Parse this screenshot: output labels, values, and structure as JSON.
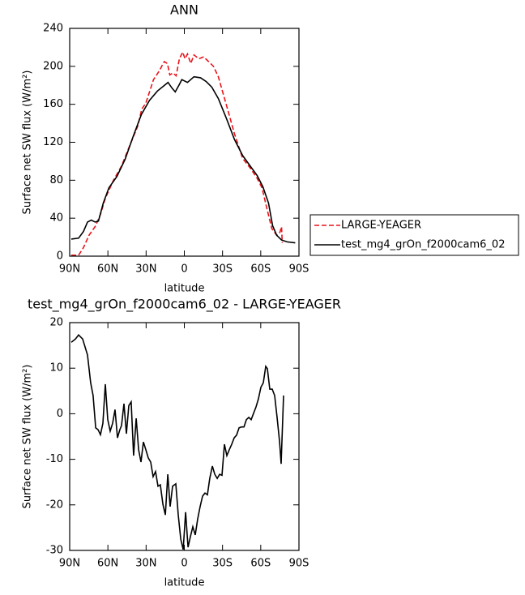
{
  "chart_data": [
    {
      "type": "line",
      "title": "ANN",
      "xlabel": "latitude",
      "ylabel": "Surface net SW flux (W/m²)",
      "xlim": [
        90,
        -90
      ],
      "ylim": [
        0,
        240
      ],
      "xticks": [
        {
          "value": 90,
          "label": "90N"
        },
        {
          "value": 60,
          "label": "60N"
        },
        {
          "value": 30,
          "label": "30N"
        },
        0,
        {
          "value": -30,
          "label": "30S"
        },
        {
          "value": -60,
          "label": "60S"
        },
        {
          "value": -90,
          "label": "90S"
        }
      ],
      "yticks": [
        0,
        40,
        80,
        120,
        160,
        200,
        240
      ],
      "legend": "right",
      "series": [
        {
          "name": "LARGE-YEAGER",
          "color": "#e8141a",
          "linestyle": "dashed",
          "x": [
            88.7,
            83,
            79.2,
            74.8,
            69.6,
            65.8,
            62,
            55.6,
            49.3,
            43,
            36.6,
            33.4,
            30.3,
            24.2,
            19.7,
            15.8,
            13.3,
            11.4,
            8.9,
            6.4,
            3.9,
            1.3,
            -0.6,
            -2.5,
            -5.1,
            -7.6,
            -11.4,
            -15.2,
            -19.1,
            -22.9,
            -26.7,
            -33.1,
            -39.4,
            -45.8,
            -52.2,
            -57.2,
            -61,
            -64.9,
            -68.7,
            -72.5,
            -75,
            -76.3,
            -76.9
          ],
          "values": [
            1,
            1,
            9,
            22,
            32,
            44,
            61,
            80,
            95,
            116,
            137,
            155,
            161,
            186,
            195,
            205,
            203,
            191,
            193,
            190,
            208,
            215,
            208,
            213,
            203,
            212,
            208,
            210,
            205,
            200,
            189,
            159,
            129,
            103,
            92,
            82,
            72,
            50,
            29,
            22,
            25,
            31,
            14
          ]
        },
        {
          "name": "test_mg4_grOn_f2000cam6_02",
          "color": "#000000",
          "linestyle": "solid",
          "x": [
            88.7,
            83,
            79.2,
            76,
            73,
            70,
            67.4,
            63.6,
            59.2,
            52.9,
            46.5,
            40.2,
            33.8,
            27.4,
            21.1,
            14.7,
            12.8,
            9.6,
            7.1,
            3.9,
            2,
            -2.5,
            -7.6,
            -12.7,
            -17.2,
            -21.6,
            -26.7,
            -33.1,
            -39.4,
            -45.8,
            -52.2,
            -57.2,
            -61.7,
            -66.1,
            -69.3,
            -72.5,
            -76.3,
            -80.8,
            -87.1
          ],
          "values": [
            18,
            19,
            26,
            36,
            38,
            36,
            37,
            56,
            72,
            84,
            102,
            126,
            149,
            164,
            174,
            181,
            183,
            177,
            173,
            181,
            186,
            183,
            189,
            188,
            184,
            178,
            166,
            145,
            123,
            106,
            94,
            85,
            73,
            56,
            32,
            22,
            17,
            15,
            14
          ]
        }
      ]
    },
    {
      "type": "line",
      "title": "test_mg4_grOn_f2000cam6_02 - LARGE-YEAGER",
      "xlabel": "latitude",
      "ylabel": "Surface net SW flux (W/m²)",
      "xlim": [
        90,
        -90
      ],
      "ylim": [
        -30,
        20
      ],
      "xticks": [
        {
          "value": 90,
          "label": "90N"
        },
        {
          "value": 60,
          "label": "60N"
        },
        {
          "value": 30,
          "label": "30N"
        },
        0,
        {
          "value": -30,
          "label": "30S"
        },
        {
          "value": -60,
          "label": "60S"
        },
        {
          "value": -90,
          "label": "90S"
        }
      ],
      "yticks": [
        -30,
        -20,
        -10,
        0,
        10,
        20
      ],
      "series": [
        {
          "color": "#000000",
          "linestyle": "solid",
          "x": [
            88.7,
            85.5,
            83,
            79.8,
            76,
            73.5,
            71.6,
            69.6,
            67.7,
            65.8,
            63.9,
            62,
            60.1,
            58.2,
            56.3,
            54.4,
            52.5,
            50.6,
            49.3,
            47.4,
            45.5,
            43.6,
            41.7,
            39.8,
            37.8,
            35.9,
            34,
            32.1,
            30.2,
            28.3,
            26.4,
            24.5,
            22.6,
            20.7,
            18.8,
            16.8,
            14.9,
            13,
            11.1,
            9.2,
            6.7,
            4.8,
            2.8,
            0.9,
            -1,
            -2.9,
            -4.8,
            -6.7,
            -8.6,
            -10.5,
            -12.4,
            -14.3,
            -16.2,
            -18.1,
            -20,
            -22,
            -23.9,
            -25.8,
            -27.7,
            -29.6,
            -31.5,
            -33.4,
            -35.3,
            -37.2,
            -39.1,
            -41,
            -43,
            -44.9,
            -46.8,
            -48.7,
            -50.6,
            -52.5,
            -54.4,
            -56.3,
            -58.2,
            -60.1,
            -62,
            -63.9,
            -65.2,
            -67.1,
            -69,
            -70.9,
            -72.8,
            -74.8,
            -76,
            -77.9
          ],
          "values": [
            15.7,
            16.4,
            17.3,
            16.4,
            12.9,
            6.8,
            4,
            -3.1,
            -3.5,
            -4.6,
            -2.1,
            6.5,
            -1.3,
            -3.8,
            -2.1,
            0.9,
            -5.3,
            -3.5,
            -2.6,
            2.2,
            -4.4,
            1.8,
            2.6,
            -9.2,
            -1,
            -7.9,
            -10.6,
            -6.2,
            -7.9,
            -9.7,
            -10.6,
            -13.8,
            -12.7,
            -15.9,
            -15.6,
            -19.9,
            -22.2,
            -13.3,
            -20.4,
            -15.9,
            -15.4,
            -22.2,
            -27.5,
            -29.8,
            -21.6,
            -29.3,
            -27,
            -24.8,
            -26.6,
            -23.1,
            -20.4,
            -18.1,
            -17.4,
            -17.8,
            -14.2,
            -11.5,
            -13.3,
            -14.2,
            -13.3,
            -13.5,
            -6.7,
            -9.2,
            -7.9,
            -6.7,
            -5.3,
            -4.7,
            -3.1,
            -2.9,
            -2.9,
            -1.3,
            -0.8,
            -1.3,
            0.1,
            1.5,
            3.3,
            5.8,
            6.8,
            10.4,
            9.9,
            5.4,
            5.4,
            4,
            -0.8,
            -6.2,
            -11,
            4
          ]
        }
      ]
    }
  ]
}
